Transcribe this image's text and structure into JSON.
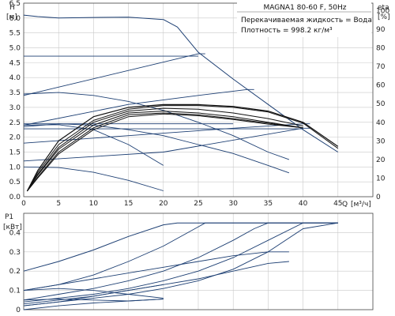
{
  "info_box": {
    "model": "MAGNA1 80-60 F, 50Hz",
    "liquid": "Перекачиваемая жидкость = Вода",
    "density": "Плотность = 998.2 кг/м³"
  },
  "chart_data": [
    {
      "type": "line",
      "name_top": "H",
      "ylabel": "[м]",
      "y2label": "eta",
      "y2unit": "[%]",
      "xlabel": "Q",
      "xunit": "[м³/ч]",
      "xlim": [
        0,
        50
      ],
      "ylim": [
        0,
        6.5
      ],
      "y2lim": [
        0,
        104
      ],
      "grid": true,
      "x_ticks": [
        "0",
        "5",
        "10",
        "15",
        "20",
        "25",
        "30",
        "35",
        "40",
        "45"
      ],
      "y_ticks": [
        "0.0",
        "0.5",
        "1.0",
        "1.5",
        "2.0",
        "2.5",
        "3.0",
        "3.5",
        "4.0",
        "4.5",
        "5.0",
        "5.5",
        "6.0",
        "6.5"
      ],
      "y2_ticks": [
        "0",
        "10",
        "20",
        "30",
        "40",
        "50",
        "60",
        "70",
        "80",
        "90",
        "100"
      ],
      "series": [
        {
          "role": "head-max",
          "color": "#1d3f73",
          "width": 1.0,
          "x": [
            0,
            2,
            5,
            10,
            15,
            20,
            22,
            25,
            30,
            35,
            40,
            45
          ],
          "y": [
            6.1,
            6.05,
            6.0,
            6.02,
            6.03,
            5.95,
            5.7,
            4.85,
            3.95,
            3.1,
            2.25,
            1.5
          ]
        },
        {
          "role": "head-prop-high",
          "color": "#1d3f73",
          "width": 0.9,
          "x": [
            0,
            25,
            26
          ],
          "y": [
            3.4,
            4.8,
            4.8
          ]
        },
        {
          "role": "head-prop-mid",
          "color": "#1d3f73",
          "width": 0.9,
          "x": [
            0,
            15,
            25,
            32,
            33
          ],
          "y": [
            2.4,
            3.1,
            3.4,
            3.6,
            3.6
          ]
        },
        {
          "role": "head-prop-low",
          "color": "#1d3f73",
          "width": 0.9,
          "x": [
            0,
            15,
            30,
            40,
            41
          ],
          "y": [
            1.8,
            2.05,
            2.3,
            2.45,
            2.45
          ]
        },
        {
          "role": "head-const-low",
          "color": "#1d3f73",
          "width": 0.9,
          "x": [
            0,
            20,
            40,
            41
          ],
          "y": [
            1.2,
            1.5,
            2.3,
            2.3
          ]
        },
        {
          "role": "head-fixed-1",
          "color": "#1d3f73",
          "width": 0.9,
          "x": [
            0,
            5,
            10,
            15,
            20,
            25,
            30,
            35,
            38
          ],
          "y": [
            3.45,
            3.5,
            3.4,
            3.2,
            2.9,
            2.5,
            2.05,
            1.5,
            1.25
          ]
        },
        {
          "role": "head-fixed-2",
          "color": "#1d3f73",
          "width": 0.9,
          "x": [
            0,
            5,
            10,
            15,
            20,
            25,
            30,
            35,
            38
          ],
          "y": [
            2.35,
            2.45,
            2.4,
            2.25,
            2.05,
            1.75,
            1.45,
            1.05,
            0.8
          ]
        },
        {
          "role": "head-fixed-3",
          "color": "#1d3f73",
          "width": 0.9,
          "x": [
            0,
            5,
            10,
            15,
            20
          ],
          "y": [
            2.4,
            2.42,
            2.25,
            1.75,
            1.05
          ]
        },
        {
          "role": "head-fixed-4",
          "color": "#1d3f73",
          "width": 0.9,
          "x": [
            0,
            5,
            10,
            15,
            20
          ],
          "y": [
            1.0,
            0.98,
            0.82,
            0.55,
            0.2
          ]
        },
        {
          "role": "head-line-4.7",
          "color": "#1d3f73",
          "width": 0.9,
          "x": [
            0,
            25
          ],
          "y": [
            4.72,
            4.72
          ]
        },
        {
          "role": "head-line-2.5",
          "color": "#1d3f73",
          "width": 0.9,
          "x": [
            0,
            30
          ],
          "y": [
            2.45,
            2.45
          ]
        },
        {
          "role": "head-line-2.3",
          "color": "#1d3f73",
          "width": 0.9,
          "x": [
            0,
            40
          ],
          "y": [
            2.28,
            2.28
          ]
        },
        {
          "role": "eta-1",
          "color": "#111111",
          "width": 1.2,
          "x": [
            0.5,
            2,
            5,
            10,
            15,
            20,
            25,
            30,
            35,
            40,
            45
          ],
          "y": [
            3,
            14,
            30,
            43,
            48,
            49.5,
            49.5,
            48.5,
            46,
            40,
            27
          ]
        },
        {
          "role": "eta-2",
          "color": "#111111",
          "width": 1.0,
          "x": [
            0.5,
            2,
            5,
            10,
            15,
            20,
            25,
            30,
            35,
            40,
            45
          ],
          "y": [
            3,
            13,
            28,
            41,
            47,
            49,
            49,
            48,
            45.5,
            39.5,
            26
          ]
        },
        {
          "role": "eta-3",
          "color": "#111111",
          "width": 1.0,
          "x": [
            0.5,
            2,
            5,
            10,
            15,
            20,
            25,
            30,
            35,
            40
          ],
          "y": [
            3,
            12,
            26.5,
            40,
            46,
            47.5,
            47,
            45,
            42,
            38
          ]
        },
        {
          "role": "eta-4",
          "color": "#111111",
          "width": 1.0,
          "x": [
            0.5,
            2,
            5,
            10,
            15,
            20,
            25,
            30,
            35,
            40
          ],
          "y": [
            3,
            11.5,
            25.5,
            38.5,
            45,
            46,
            45,
            43,
            40,
            37
          ]
        },
        {
          "role": "eta-5",
          "color": "#111111",
          "width": 1.0,
          "x": [
            0.5,
            2,
            5,
            10,
            15,
            20,
            25,
            30,
            35,
            40
          ],
          "y": [
            3,
            10.5,
            24,
            37,
            44,
            45,
            44,
            42,
            39.5,
            37
          ]
        },
        {
          "role": "eta-6",
          "color": "#111111",
          "width": 1.0,
          "x": [
            0.5,
            2,
            5,
            10,
            15,
            20,
            25,
            30,
            35,
            40
          ],
          "y": [
            3,
            10,
            23,
            36,
            43,
            44.5,
            43.5,
            41.5,
            39,
            37
          ]
        }
      ]
    },
    {
      "type": "line",
      "name_top": "P1",
      "ylabel": "[кВт]",
      "xlim": [
        0,
        50
      ],
      "ylim": [
        0,
        0.5
      ],
      "grid": true,
      "y_ticks": [
        "0",
        "0.1",
        "0.2",
        "0.3",
        "0.4"
      ],
      "series": [
        {
          "role": "p1-max",
          "color": "#1d3f73",
          "width": 1.0,
          "x": [
            0,
            5,
            10,
            15,
            20,
            22,
            25,
            30,
            35,
            40,
            45
          ],
          "y": [
            0.2,
            0.25,
            0.31,
            0.38,
            0.44,
            0.45,
            0.45,
            0.45,
            0.45,
            0.45,
            0.45
          ]
        },
        {
          "role": "p1-a",
          "color": "#1d3f73",
          "width": 0.9,
          "x": [
            0,
            5,
            10,
            15,
            20,
            25,
            26,
            30,
            35,
            40,
            45
          ],
          "y": [
            0.1,
            0.13,
            0.18,
            0.25,
            0.33,
            0.43,
            0.45,
            0.45,
            0.45,
            0.45,
            0.45
          ]
        },
        {
          "role": "p1-b",
          "color": "#1d3f73",
          "width": 0.9,
          "x": [
            0,
            5,
            10,
            15,
            20,
            25,
            30,
            33,
            35,
            40,
            45
          ],
          "y": [
            0.05,
            0.08,
            0.11,
            0.15,
            0.2,
            0.27,
            0.36,
            0.42,
            0.45,
            0.45,
            0.45
          ]
        },
        {
          "role": "p1-c",
          "color": "#1d3f73",
          "width": 0.9,
          "x": [
            0,
            5,
            10,
            15,
            20,
            25,
            30,
            35,
            40,
            45
          ],
          "y": [
            0.04,
            0.06,
            0.08,
            0.11,
            0.15,
            0.2,
            0.27,
            0.36,
            0.45,
            0.45
          ]
        },
        {
          "role": "p1-d",
          "color": "#1d3f73",
          "width": 0.9,
          "x": [
            0,
            5,
            10,
            15,
            20,
            25,
            30,
            35,
            40,
            45
          ],
          "y": [
            0.02,
            0.04,
            0.06,
            0.08,
            0.11,
            0.15,
            0.21,
            0.3,
            0.42,
            0.45
          ]
        },
        {
          "role": "p1-e",
          "color": "#1d3f73",
          "width": 0.9,
          "x": [
            0,
            5,
            10,
            15,
            20,
            25,
            30,
            35,
            38
          ],
          "y": [
            0.1,
            0.13,
            0.16,
            0.19,
            0.22,
            0.25,
            0.28,
            0.3,
            0.3
          ]
        },
        {
          "role": "p1-f",
          "color": "#1d3f73",
          "width": 0.9,
          "x": [
            0,
            5,
            10,
            15,
            20,
            25,
            30,
            35,
            38
          ],
          "y": [
            0.03,
            0.05,
            0.07,
            0.1,
            0.13,
            0.16,
            0.2,
            0.24,
            0.25
          ]
        },
        {
          "role": "p1-g",
          "color": "#1d3f73",
          "width": 0.9,
          "x": [
            0,
            5,
            10,
            15,
            20
          ],
          "y": [
            0.02,
            0.04,
            0.07,
            0.1,
            0.13
          ]
        },
        {
          "role": "p1-h",
          "color": "#1d3f73",
          "width": 0.9,
          "x": [
            0,
            5,
            10,
            15,
            20
          ],
          "y": [
            0.0,
            0.02,
            0.035,
            0.045,
            0.055
          ]
        },
        {
          "role": "p1-i",
          "color": "#1d3f73",
          "width": 0.9,
          "x": [
            0,
            5,
            10,
            15,
            20
          ],
          "y": [
            0.1,
            0.11,
            0.1,
            0.08,
            0.06
          ]
        },
        {
          "role": "p1-j",
          "color": "#1d3f73",
          "width": 0.9,
          "x": [
            0,
            5,
            10,
            15,
            20
          ],
          "y": [
            0.05,
            0.055,
            0.05,
            0.045,
            0.055
          ]
        }
      ]
    }
  ]
}
